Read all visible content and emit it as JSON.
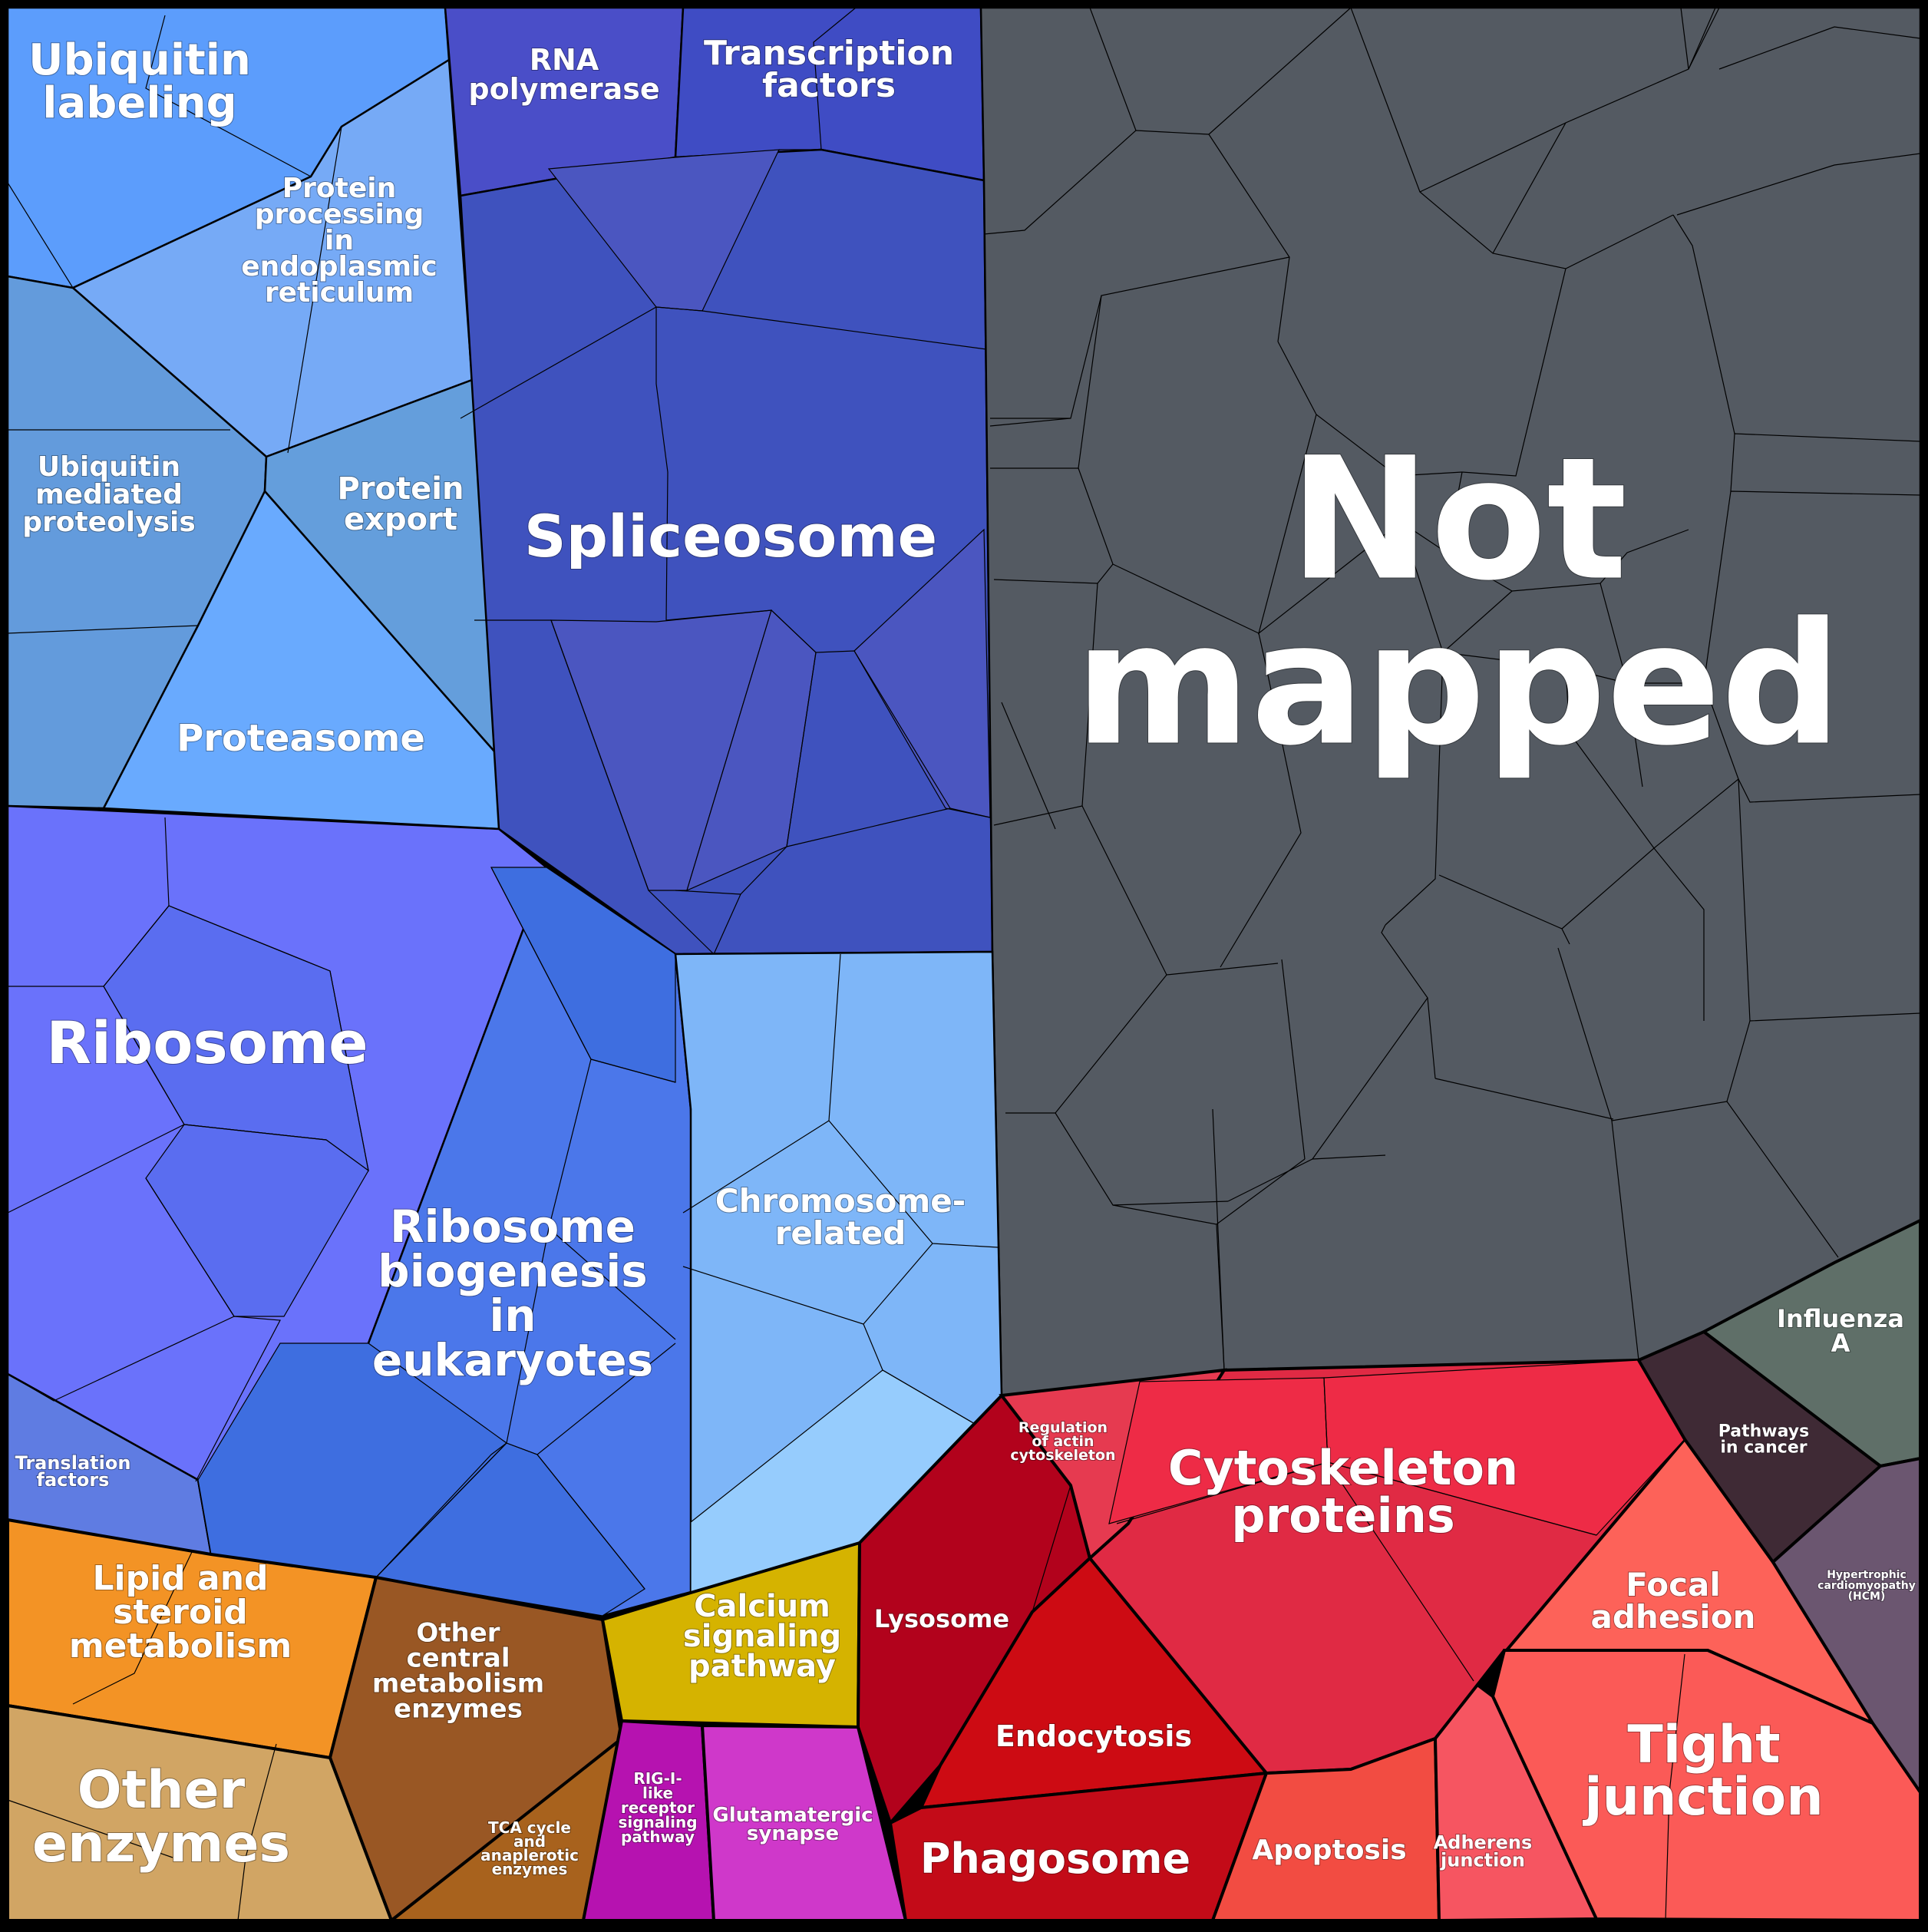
{
  "colors": {
    "ubiquitin": "#5c9dfc",
    "protein_processing": "#76aaf6",
    "ubiquitin_proteolysis": "#639bdc",
    "protein_export": "#649edc",
    "proteasome": "#69aafe",
    "rna_polymerase": "#4a4ec8",
    "transcription": "#3f4cc4",
    "spliceosome": "#3f52be",
    "spliceosome_alt": "#4b56c0",
    "ribosome": "#6a72fb",
    "ribosome_alt": "#5a6df0",
    "ribo_biogenesis": "#4b77ea",
    "ribo_biogenesis_alt": "#3e6ee0",
    "translation": "#5f7ce2",
    "chromosome": "#7eb6f8",
    "chromosome_light": "#96ccfd",
    "not_mapped": "#545a62",
    "lipid": "#f39325",
    "other_central": "#995724",
    "tca": "#a8621d",
    "other_enzymes": "#d1a564",
    "calcium": "#d5b300",
    "rig": "#b612b0",
    "glutamatergic": "#cf38ca",
    "lysosome": "#b2021c",
    "endocytosis": "#cd0b13",
    "phagosome": "#c30b18",
    "regulation_actin": "#e63a50",
    "cytoskeleton": "#e02a44",
    "cytoskeleton_alt": "#ee2b46",
    "apoptosis": "#f24c42",
    "adherens": "#f65561",
    "focal_adhesion": "#fd6259",
    "tight_junction": "#fb5a57",
    "influenza": "#5f6f68",
    "pathways_cancer": "#3f2a35",
    "hcm": "#6b5670",
    "border": "#000000"
  },
  "labels": {
    "ubiquitin_labeling": [
      "Ubiquitin",
      "labeling"
    ],
    "protein_processing": [
      "Protein",
      "processing",
      "in",
      "endoplasmic",
      "reticulum"
    ],
    "ubiquitin_proteolysis": [
      "Ubiquitin",
      "mediated",
      "proteolysis"
    ],
    "protein_export": [
      "Protein",
      "export"
    ],
    "proteasome": [
      "Proteasome"
    ],
    "rna_polymerase": [
      "RNA",
      "polymerase"
    ],
    "transcription_factors": [
      "Transcription",
      "factors"
    ],
    "spliceosome": [
      "Spliceosome"
    ],
    "not_mapped": [
      "Not",
      "mapped"
    ],
    "ribosome": [
      "Ribosome"
    ],
    "ribosome_biogenesis": [
      "Ribosome",
      "biogenesis",
      "in",
      "eukaryotes"
    ],
    "chromosome_related": [
      "Chromosome-",
      "related"
    ],
    "translation_factors": [
      "Translation",
      "factors"
    ],
    "lipid_steroid": [
      "Lipid and",
      "steroid",
      "metabolism"
    ],
    "other_central": [
      "Other",
      "central",
      "metabolism",
      "enzymes"
    ],
    "calcium_signaling": [
      "Calcium",
      "signaling",
      "pathway"
    ],
    "other_enzymes": [
      "Other",
      "enzymes"
    ],
    "tca_cycle": [
      "TCA cycle",
      "and",
      "anaplerotic",
      "enzymes"
    ],
    "rig_like": [
      "RIG-I-",
      "like",
      "receptor",
      "signaling",
      "pathway"
    ],
    "glutamatergic": [
      "Glutamatergic",
      "synapse"
    ],
    "lysosome": [
      "Lysosome"
    ],
    "endocytosis": [
      "Endocytosis"
    ],
    "phagosome": [
      "Phagosome"
    ],
    "regulation_actin": [
      "Regulation",
      "of actin",
      "cytoskeleton"
    ],
    "cytoskeleton_proteins": [
      "Cytoskeleton",
      "proteins"
    ],
    "apoptosis": [
      "Apoptosis"
    ],
    "adherens_junction": [
      "Adherens",
      "junction"
    ],
    "focal_adhesion": [
      "Focal",
      "adhesion"
    ],
    "tight_junction": [
      "Tight",
      "junction"
    ],
    "influenza_a": [
      "Influenza",
      "A"
    ],
    "pathways_in_cancer": [
      "Pathways",
      "in cancer"
    ],
    "hcm": [
      "Hypertrophic",
      "cardiomyopathy",
      "(HCM)"
    ]
  }
}
